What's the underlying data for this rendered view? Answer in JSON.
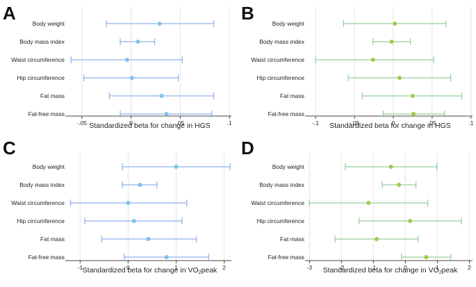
{
  "colors": {
    "blue": "#8fb0ea",
    "blue_point": "#7fc3ec",
    "green": "#93cf9a",
    "green_point": "#a8c64a"
  },
  "chart_data": [
    {
      "panel": "A",
      "type": "forest",
      "color_key": "blue",
      "point_color_key": "blue_point",
      "xlabel_main": "Standardized beta for change in HGS",
      "xlabel_sub": "",
      "xlim": [
        -0.064,
        0.102
      ],
      "xticks": [
        -0.05,
        0,
        0.05,
        0.1
      ],
      "xtick_labels": [
        "-.05",
        "0",
        ".05",
        ".1"
      ],
      "categories": [
        "Body weight",
        "Body mass index",
        "Waist circumference",
        "Hip circumference",
        "Fat mass",
        "Fat-free mass"
      ],
      "estimates": [
        0.029,
        0.007,
        -0.004,
        0.001,
        0.031,
        0.036
      ],
      "ci_lower": [
        -0.025,
        -0.011,
        -0.061,
        -0.048,
        -0.022,
        -0.011
      ],
      "ci_upper": [
        0.084,
        0.024,
        0.052,
        0.048,
        0.084,
        0.082
      ]
    },
    {
      "panel": "B",
      "type": "forest",
      "color_key": "green",
      "point_color_key": "green_point",
      "xlabel_main": "Standardized beta for change in HGS",
      "xlabel_sub": "",
      "xlim": [
        -0.11,
        0.102
      ],
      "xticks": [
        -0.1,
        -0.05,
        0,
        0.05,
        0.1
      ],
      "xtick_labels": [
        "-.1",
        "-.05",
        "0",
        ".05",
        ".1"
      ],
      "categories": [
        "Body weight",
        "Body mass index",
        "Waist circumference",
        "Hip circumference",
        "Fat mass",
        "Fat-free mass"
      ],
      "estimates": [
        0.002,
        -0.002,
        -0.026,
        0.008,
        0.025,
        0.026
      ],
      "ci_lower": [
        -0.064,
        -0.026,
        -0.1,
        -0.058,
        -0.04,
        -0.013
      ],
      "ci_upper": [
        0.068,
        0.022,
        0.052,
        0.074,
        0.088,
        0.066
      ]
    },
    {
      "panel": "C",
      "type": "forest",
      "color_key": "blue",
      "point_color_key": "blue_point",
      "xlabel_main": "Standardized beta for change in VO",
      "xlabel_sub": "2",
      "xlabel_tail": "peak",
      "xlim": [
        -1.25,
        2.15
      ],
      "xticks": [
        -1,
        0,
        1,
        2
      ],
      "xtick_labels": [
        "-1",
        "0",
        "1",
        "2"
      ],
      "categories": [
        "Body weight",
        "Body mass index",
        "Waist circumference",
        "Hip circumference",
        "Fat mass",
        "Fat-free mass"
      ],
      "estimates": [
        1.0,
        0.25,
        0.0,
        0.12,
        0.42,
        0.8
      ],
      "ci_lower": [
        -0.12,
        -0.12,
        -1.2,
        -0.9,
        -0.55,
        -0.08
      ],
      "ci_upper": [
        2.12,
        0.6,
        1.22,
        1.12,
        1.42,
        1.68
      ]
    },
    {
      "panel": "D",
      "type": "forest",
      "color_key": "green",
      "point_color_key": "green_point",
      "xlabel_main": "Standardized beta for change in VO",
      "xlabel_sub": "2",
      "xlabel_tail": "peak",
      "xlim": [
        -3.05,
        2.1
      ],
      "xticks": [
        -3,
        -2,
        -1,
        0,
        1,
        2
      ],
      "xtick_labels": [
        "-3",
        "-2",
        "-1",
        "0",
        "1",
        "2"
      ],
      "categories": [
        "Body weight",
        "Body mass index",
        "Waist circumference",
        "Hip circumference",
        "Fat mass",
        "Fat-free mass"
      ],
      "estimates": [
        -0.45,
        -0.2,
        -1.15,
        0.15,
        -0.9,
        0.65
      ],
      "ci_lower": [
        -1.88,
        -0.72,
        -3.0,
        -1.45,
        -2.2,
        -0.12
      ],
      "ci_upper": [
        0.98,
        0.33,
        0.7,
        1.75,
        0.4,
        1.42
      ]
    }
  ]
}
